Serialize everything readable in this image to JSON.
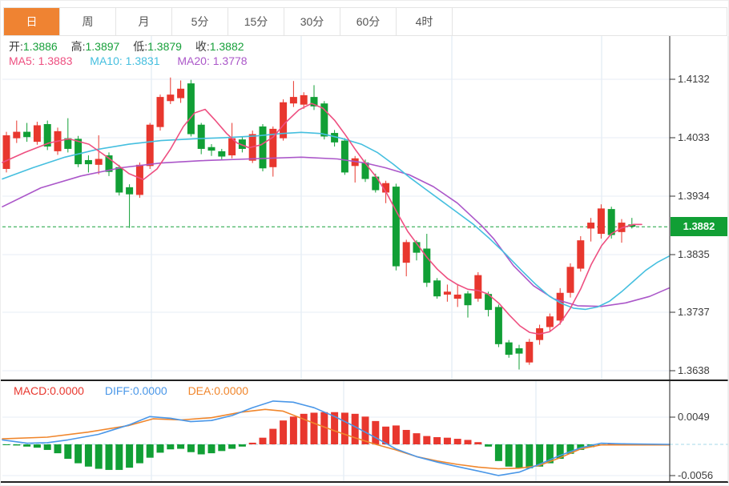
{
  "toolbar": {
    "tabs": [
      {
        "label": "日",
        "active": true
      },
      {
        "label": "周",
        "active": false
      },
      {
        "label": "月",
        "active": false
      },
      {
        "label": "5分",
        "active": false
      },
      {
        "label": "15分",
        "active": false
      },
      {
        "label": "30分",
        "active": false
      },
      {
        "label": "60分",
        "active": false
      },
      {
        "label": "4时",
        "active": false
      }
    ]
  },
  "header": {
    "ohlc": [
      {
        "label": "开:",
        "value": "1.3886"
      },
      {
        "label": "高:",
        "value": "1.3897"
      },
      {
        "label": "低:",
        "value": "1.3879"
      },
      {
        "label": "收:",
        "value": "1.3882"
      }
    ],
    "ma": [
      {
        "label": "MA5:",
        "value": "1.3883",
        "color": "#ee4f80"
      },
      {
        "label": "MA10:",
        "value": "1.3831",
        "color": "#45bfdf"
      },
      {
        "label": "MA20:",
        "value": "1.3778",
        "color": "#ab57c9"
      }
    ],
    "macd": [
      {
        "label": "MACD:",
        "value": "0.0000",
        "color": "#e8372e"
      },
      {
        "label": "DIFF:",
        "value": "0.0000",
        "color": "#4a97e8"
      },
      {
        "label": "DEA:",
        "value": "0.0000",
        "color": "#f0862c"
      }
    ]
  },
  "chart_data": {
    "type": "candlestick",
    "panels": [
      "price",
      "macd"
    ],
    "grid": true,
    "legend_position": "top-left",
    "price_axis": {
      "ticks": [
        "1.4132",
        "1.4033",
        "1.3934",
        "1.3835",
        "1.3737",
        "1.3638"
      ],
      "max": 1.4132,
      "min": 1.3638,
      "current_label": "1.3882",
      "current_price": 1.3882,
      "badge_color": "#119f35"
    },
    "macd_axis": {
      "ticks": [
        "0.0049",
        "-0.0056"
      ],
      "max": 0.0049,
      "min": -0.0056
    },
    "candles": [
      [
        1.398,
        1.4043,
        1.3974,
        1.4037
      ],
      [
        1.4032,
        1.4062,
        1.4024,
        1.4043
      ],
      [
        1.4043,
        1.4058,
        1.4026,
        1.4034
      ],
      [
        1.4026,
        1.406,
        1.4021,
        1.4054
      ],
      [
        1.4056,
        1.4062,
        1.4012,
        1.4018
      ],
      [
        1.401,
        1.405,
        1.4004,
        1.4044
      ],
      [
        1.4032,
        1.4066,
        1.4008,
        1.4014
      ],
      [
        1.4031,
        1.4036,
        1.3983,
        1.3988
      ],
      [
        1.3995,
        1.4003,
        1.3974,
        1.3988
      ],
      [
        1.3987,
        1.4037,
        1.3971,
        1.3997
      ],
      [
        1.4003,
        1.4008,
        1.3968,
        1.3975
      ],
      [
        1.3983,
        1.3987,
        1.3935,
        1.394
      ],
      [
        1.3949,
        1.3954,
        1.388,
        1.3937
      ],
      [
        1.3936,
        1.3991,
        1.3931,
        1.3987
      ],
      [
        1.3985,
        1.4058,
        1.398,
        1.4055
      ],
      [
        1.4051,
        1.4106,
        1.4045,
        1.4102
      ],
      [
        1.4095,
        1.4135,
        1.409,
        1.4106
      ],
      [
        1.41,
        1.413,
        1.4092,
        1.4116
      ],
      [
        1.4125,
        1.4131,
        1.4035,
        1.4039
      ],
      [
        1.4055,
        1.4058,
        1.4005,
        1.4014
      ],
      [
        1.4017,
        1.4022,
        1.4002,
        1.4011
      ],
      [
        1.401,
        1.4014,
        1.3996,
        1.4001
      ],
      [
        1.4003,
        1.4058,
        1.3998,
        1.4032
      ],
      [
        1.403,
        1.4035,
        1.4008,
        1.4014
      ],
      [
        1.3994,
        1.4045,
        1.399,
        1.4039
      ],
      [
        1.4052,
        1.4056,
        1.3976,
        1.3981
      ],
      [
        1.3983,
        1.4052,
        1.3967,
        1.4048
      ],
      [
        1.4032,
        1.4098,
        1.4028,
        1.4093
      ],
      [
        1.4091,
        1.4129,
        1.4085,
        1.4102
      ],
      [
        1.4089,
        1.411,
        1.4082,
        1.4105
      ],
      [
        1.4102,
        1.4122,
        1.408,
        1.4086
      ],
      [
        1.4091,
        1.4095,
        1.403,
        1.4035
      ],
      [
        1.4041,
        1.4046,
        1.4018,
        1.4025
      ],
      [
        1.4028,
        1.4032,
        1.397,
        1.3974
      ],
      [
        1.3985,
        1.4002,
        1.3957,
        1.3998
      ],
      [
        1.3991,
        1.3996,
        1.3958,
        1.3963
      ],
      [
        1.3967,
        1.3972,
        1.394,
        1.3944
      ],
      [
        1.394,
        1.396,
        1.3922,
        1.3956
      ],
      [
        1.395,
        1.3955,
        1.3808,
        1.3815
      ],
      [
        1.3821,
        1.386,
        1.3798,
        1.3856
      ],
      [
        1.3856,
        1.3859,
        1.3825,
        1.3838
      ],
      [
        1.3845,
        1.387,
        1.378,
        1.3787
      ],
      [
        1.3791,
        1.3795,
        1.376,
        1.3764
      ],
      [
        1.3767,
        1.3784,
        1.3755,
        1.3772
      ],
      [
        1.376,
        1.3784,
        1.3746,
        1.3767
      ],
      [
        1.3769,
        1.3773,
        1.3728,
        1.3749
      ],
      [
        1.376,
        1.3805,
        1.3755,
        1.38
      ],
      [
        1.3768,
        1.3772,
        1.373,
        1.3741
      ],
      [
        1.3746,
        1.375,
        1.3678,
        1.3683
      ],
      [
        1.3686,
        1.369,
        1.366,
        1.3665
      ],
      [
        1.3676,
        1.3682,
        1.364,
        1.3667
      ],
      [
        1.3652,
        1.3692,
        1.3648,
        1.3687
      ],
      [
        1.369,
        1.3716,
        1.3682,
        1.371
      ],
      [
        1.3712,
        1.3735,
        1.3705,
        1.373
      ],
      [
        1.3723,
        1.3778,
        1.3716,
        1.377
      ],
      [
        1.377,
        1.382,
        1.3762,
        1.3814
      ],
      [
        1.3811,
        1.3866,
        1.3806,
        1.3859
      ],
      [
        1.3879,
        1.3897,
        1.3857,
        1.3889
      ],
      [
        1.387,
        1.392,
        1.3862,
        1.3913
      ],
      [
        1.3912,
        1.3916,
        1.3862,
        1.3868
      ],
      [
        1.3873,
        1.3895,
        1.3855,
        1.3889
      ],
      [
        1.3886,
        1.3897,
        1.3879,
        1.3882
      ]
    ],
    "ma5_line": [
      [
        2,
        1.3991
      ],
      [
        30,
        1.4008
      ],
      [
        60,
        1.4024
      ],
      [
        85,
        1.4031
      ],
      [
        110,
        1.4022
      ],
      [
        135,
        1.3998
      ],
      [
        160,
        1.3972
      ],
      [
        178,
        1.3962
      ],
      [
        195,
        1.398
      ],
      [
        212,
        1.4014
      ],
      [
        228,
        1.4052
      ],
      [
        242,
        1.4075
      ],
      [
        255,
        1.4081
      ],
      [
        268,
        1.4062
      ],
      [
        282,
        1.404
      ],
      [
        295,
        1.4024
      ],
      [
        310,
        1.4016
      ],
      [
        325,
        1.4021
      ],
      [
        340,
        1.4034
      ],
      [
        355,
        1.4058
      ],
      [
        372,
        1.408
      ],
      [
        388,
        1.4091
      ],
      [
        402,
        1.4083
      ],
      [
        417,
        1.4062
      ],
      [
        430,
        1.4038
      ],
      [
        443,
        1.4012
      ],
      [
        456,
        1.3988
      ],
      [
        470,
        1.3964
      ],
      [
        482,
        1.3938
      ],
      [
        495,
        1.3905
      ],
      [
        508,
        1.3874
      ],
      [
        520,
        1.3852
      ],
      [
        532,
        1.383
      ],
      [
        545,
        1.381
      ],
      [
        558,
        1.3794
      ],
      [
        570,
        1.3784
      ],
      [
        583,
        1.3776
      ],
      [
        596,
        1.3774
      ],
      [
        608,
        1.3768
      ],
      [
        622,
        1.3752
      ],
      [
        635,
        1.3732
      ],
      [
        648,
        1.3714
      ],
      [
        660,
        1.3703
      ],
      [
        672,
        1.37
      ],
      [
        685,
        1.3704
      ],
      [
        698,
        1.3718
      ],
      [
        711,
        1.3744
      ],
      [
        724,
        1.3777
      ],
      [
        737,
        1.3818
      ],
      [
        750,
        1.385
      ],
      [
        762,
        1.387
      ],
      [
        775,
        1.388
      ],
      [
        790,
        1.3886
      ],
      [
        800,
        1.3886
      ]
    ],
    "ma10_line": [
      [
        2,
        1.3963
      ],
      [
        40,
        1.3982
      ],
      [
        80,
        1.4
      ],
      [
        120,
        1.4013
      ],
      [
        160,
        1.4022
      ],
      [
        200,
        1.4028
      ],
      [
        240,
        1.4031
      ],
      [
        280,
        1.4033
      ],
      [
        320,
        1.4036
      ],
      [
        350,
        1.404
      ],
      [
        375,
        1.4042
      ],
      [
        400,
        1.404
      ],
      [
        425,
        1.4032
      ],
      [
        450,
        1.4022
      ],
      [
        470,
        1.4008
      ],
      [
        490,
        1.3988
      ],
      [
        510,
        1.3966
      ],
      [
        530,
        1.3946
      ],
      [
        550,
        1.3926
      ],
      [
        570,
        1.3906
      ],
      [
        590,
        1.3886
      ],
      [
        610,
        1.3862
      ],
      [
        630,
        1.3836
      ],
      [
        650,
        1.3808
      ],
      [
        668,
        1.3784
      ],
      [
        685,
        1.3764
      ],
      [
        700,
        1.3752
      ],
      [
        715,
        1.3744
      ],
      [
        730,
        1.3742
      ],
      [
        745,
        1.3746
      ],
      [
        760,
        1.3756
      ],
      [
        775,
        1.3772
      ],
      [
        790,
        1.379
      ],
      [
        805,
        1.3808
      ],
      [
        820,
        1.3822
      ],
      [
        834,
        1.3832
      ]
    ],
    "ma20_line": [
      [
        2,
        1.3916
      ],
      [
        50,
        1.3948
      ],
      [
        100,
        1.3968
      ],
      [
        150,
        1.3982
      ],
      [
        200,
        1.399
      ],
      [
        250,
        1.3994
      ],
      [
        310,
        1.3997
      ],
      [
        375,
        1.4
      ],
      [
        420,
        1.3997
      ],
      [
        455,
        1.399
      ],
      [
        480,
        1.3982
      ],
      [
        510,
        1.397
      ],
      [
        540,
        1.395
      ],
      [
        570,
        1.3922
      ],
      [
        600,
        1.3884
      ],
      [
        615,
        1.3862
      ],
      [
        640,
        1.3816
      ],
      [
        665,
        1.3782
      ],
      [
        690,
        1.376
      ],
      [
        720,
        1.3748
      ],
      [
        750,
        1.3747
      ],
      [
        780,
        1.3753
      ],
      [
        810,
        1.3764
      ],
      [
        834,
        1.3778
      ]
    ],
    "macd_histogram": [
      -0.0001,
      -0.0002,
      -0.0004,
      -0.0006,
      -0.001,
      -0.0016,
      -0.0026,
      -0.0034,
      -0.004,
      -0.0044,
      -0.0046,
      -0.0046,
      -0.0042,
      -0.0034,
      -0.0024,
      -0.0015,
      -0.0009,
      -0.0008,
      -0.0014,
      -0.0018,
      -0.0016,
      -0.0012,
      -0.0008,
      -0.0004,
      0.0003,
      0.0012,
      0.0028,
      0.0043,
      0.005,
      0.0055,
      0.0057,
      0.0058,
      0.0058,
      0.0057,
      0.0055,
      0.005,
      0.0042,
      0.0032,
      0.0034,
      0.0026,
      0.002,
      0.0015,
      0.0013,
      0.0012,
      0.001,
      0.0008,
      0.0004,
      -0.0004,
      -0.003,
      -0.004,
      -0.0043,
      -0.0043,
      -0.004,
      -0.0034,
      -0.0026,
      -0.0017,
      -0.001,
      -0.0005,
      -0.0002,
      0.0001,
      0.0002,
      0.0
    ],
    "diff_line": [
      [
        2,
        0.0008
      ],
      [
        33,
        0.0002
      ],
      [
        58,
        0.0003
      ],
      [
        84,
        0.0008
      ],
      [
        122,
        0.0018
      ],
      [
        160,
        0.0035
      ],
      [
        186,
        0.005
      ],
      [
        212,
        0.0047
      ],
      [
        237,
        0.0041
      ],
      [
        263,
        0.0043
      ],
      [
        289,
        0.0052
      ],
      [
        314,
        0.0066
      ],
      [
        340,
        0.0078
      ],
      [
        365,
        0.0076
      ],
      [
        391,
        0.0066
      ],
      [
        417,
        0.005
      ],
      [
        442,
        0.0032
      ],
      [
        468,
        0.0012
      ],
      [
        493,
        -0.0008
      ],
      [
        519,
        -0.0022
      ],
      [
        545,
        -0.0032
      ],
      [
        570,
        -0.004
      ],
      [
        596,
        -0.0048
      ],
      [
        621,
        -0.0056
      ],
      [
        647,
        -0.005
      ],
      [
        672,
        -0.0036
      ],
      [
        698,
        -0.002
      ],
      [
        724,
        -0.0006
      ],
      [
        749,
        0.0002
      ],
      [
        775,
        0.0001
      ],
      [
        834,
        0.0
      ]
    ],
    "dea_line": [
      [
        2,
        0.001
      ],
      [
        58,
        0.0013
      ],
      [
        109,
        0.0022
      ],
      [
        160,
        0.0034
      ],
      [
        190,
        0.0046
      ],
      [
        225,
        0.0044
      ],
      [
        263,
        0.0048
      ],
      [
        300,
        0.0058
      ],
      [
        330,
        0.0063
      ],
      [
        352,
        0.006
      ],
      [
        391,
        0.0038
      ],
      [
        417,
        0.0024
      ],
      [
        442,
        0.0012
      ],
      [
        468,
        0.0
      ],
      [
        493,
        -0.001
      ],
      [
        519,
        -0.0022
      ],
      [
        545,
        -0.003
      ],
      [
        570,
        -0.0036
      ],
      [
        596,
        -0.0041
      ],
      [
        621,
        -0.0044
      ],
      [
        647,
        -0.0043
      ],
      [
        672,
        -0.0038
      ],
      [
        698,
        -0.0024
      ],
      [
        724,
        -0.0008
      ],
      [
        749,
        -0.0001
      ],
      [
        834,
        -0.0001
      ]
    ],
    "colors": {
      "up": "#e8372e",
      "down": "#119f35",
      "ma5": "#ee4f80",
      "ma10": "#45bfdf",
      "ma20": "#ab57c9",
      "diff": "#4a97e8",
      "dea": "#f0862c",
      "current_price_line": "#17a03a",
      "zero_line": "#a6d8ea",
      "grid_h": "#e7edf5",
      "grid_v": "#dbe7f2",
      "frame": "#222222",
      "active_tab": "#ef8332"
    }
  }
}
